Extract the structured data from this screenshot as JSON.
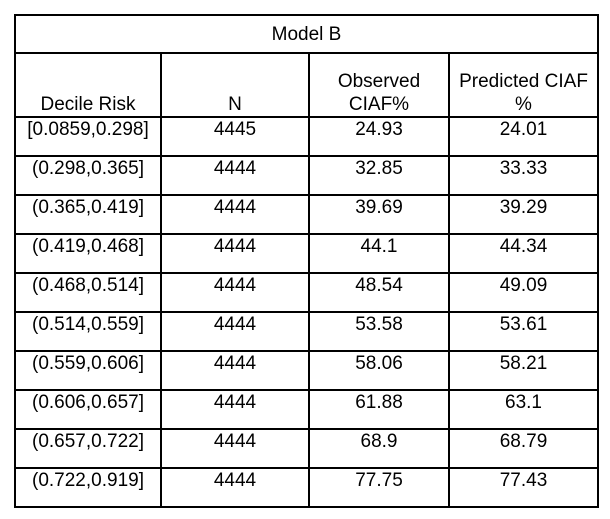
{
  "table": {
    "title": "Model B",
    "headers": [
      "Decile Risk",
      "N",
      "Observed CIAF%",
      "Predicted CIAF %"
    ],
    "rows": [
      [
        "[0.0859,0.298]",
        "4445",
        "24.93",
        "24.01"
      ],
      [
        "(0.298,0.365]",
        "4444",
        "32.85",
        "33.33"
      ],
      [
        "(0.365,0.419]",
        "4444",
        "39.69",
        "39.29"
      ],
      [
        "(0.419,0.468]",
        "4444",
        "44.1",
        "44.34"
      ],
      [
        "(0.468,0.514]",
        "4444",
        "48.54",
        "49.09"
      ],
      [
        "(0.514,0.559]",
        "4444",
        "53.58",
        "53.61"
      ],
      [
        "(0.559,0.606]",
        "4444",
        "58.06",
        "58.21"
      ],
      [
        "(0.606,0.657]",
        "4444",
        "61.88",
        "63.1"
      ],
      [
        "(0.657,0.722]",
        "4444",
        "68.9",
        "68.79"
      ],
      [
        "(0.722,0.919]",
        "4444",
        "77.75",
        "77.43"
      ]
    ]
  }
}
